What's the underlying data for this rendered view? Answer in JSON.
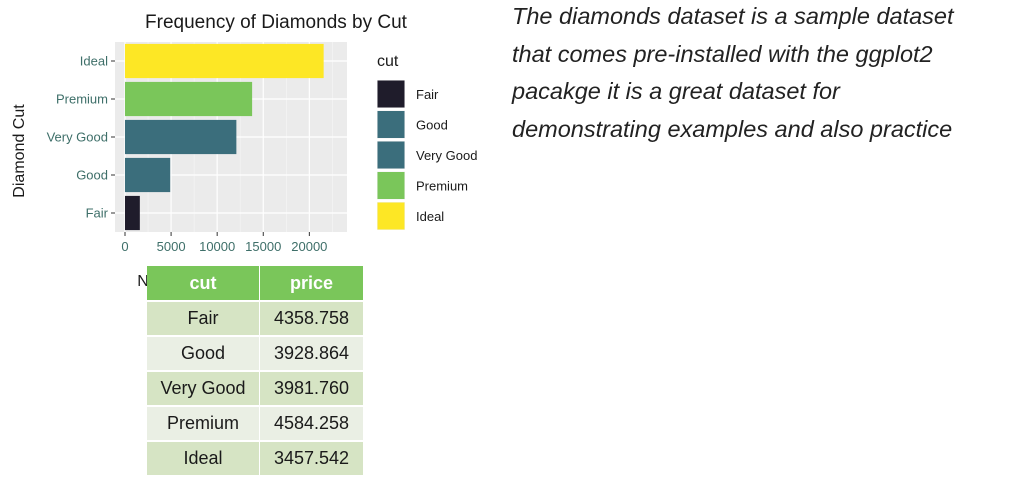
{
  "chart_data": {
    "type": "bar",
    "orientation": "horizontal",
    "title": "Frequency of Diamonds by Cut",
    "xlabel": "N",
    "ylabel": "Diamond Cut",
    "categories": [
      "Fair",
      "Good",
      "Very Good",
      "Premium",
      "Ideal"
    ],
    "values": [
      1610,
      4906,
      12082,
      13791,
      21551
    ],
    "colors": [
      "#1f1c2b",
      "#3b6e7c",
      "#3b6e7c",
      "#7ac65a",
      "#fde725"
    ],
    "xlim": [
      0,
      23000
    ],
    "x_ticks": [
      0,
      5000,
      10000,
      15000,
      20000
    ],
    "x_tick_labels": [
      "0",
      "5000",
      "10000",
      "15000",
      "20000"
    ],
    "grid": true,
    "legend": {
      "title": "cut",
      "position": "right",
      "entries": [
        "Fair",
        "Good",
        "Very Good",
        "Premium",
        "Ideal"
      ]
    }
  },
  "description": {
    "lines": [
      "The diamonds dataset is a sample dataset",
      "that comes pre-installed with the ggplot2",
      "pacakge it is a great dataset for",
      "demonstrating examples and also practice"
    ]
  },
  "table": {
    "headers": [
      "cut",
      "price"
    ],
    "rows": [
      [
        "Fair",
        "4358.758"
      ],
      [
        "Good",
        "3928.864"
      ],
      [
        "Very Good",
        "3981.760"
      ],
      [
        "Premium",
        "4584.258"
      ],
      [
        "Ideal",
        "3457.542"
      ]
    ]
  }
}
